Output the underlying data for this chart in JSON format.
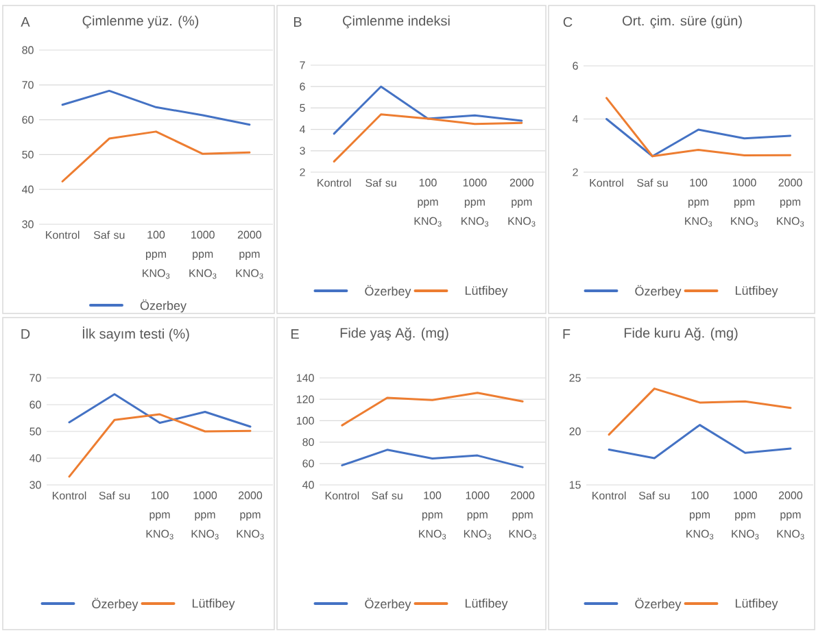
{
  "chart_data": [
    {
      "type": "line",
      "title": "Çimlenme yüz. (%)",
      "annotations": [
        "A"
      ],
      "categories": [
        "Kontrol",
        "Saf su",
        "100 ppm KNO$_{3}$",
        "1000 ppm KNO$_{3}$",
        "2000 ppm KNO$_{3}$"
      ],
      "series": [
        {
          "name": "Özerbey",
          "color": "#4472c4",
          "values": [
            64.3,
            68.3,
            63.6,
            61.3,
            58.6
          ]
        },
        {
          "color": "#ed7d31",
          "values": [
            42.3,
            54.6,
            56.6,
            50.2,
            50.6
          ]
        }
      ],
      "ylim": [
        30,
        80
      ],
      "yticks": [
        30,
        40,
        50,
        60,
        70,
        80
      ],
      "grid": "y",
      "legend": "bottom",
      "line_style": "solid"
    },
    {
      "type": "line",
      "title": "Çimlenme indeksi",
      "annotations": [
        "B"
      ],
      "categories": [
        "Kontrol",
        "Saf su",
        "100 ppm KNO$_{3}$",
        "1000 ppm KNO$_{3}$",
        "2000 ppm KNO$_{3}$"
      ],
      "series": [
        {
          "name": "Özerbey",
          "color": "#4472c4",
          "values": [
            3.8,
            6.0,
            4.5,
            4.65,
            4.4
          ]
        },
        {
          "name": "Lütfibey",
          "color": "#ed7d31",
          "values": [
            2.5,
            4.7,
            4.5,
            4.25,
            4.3
          ]
        }
      ],
      "ylim": [
        2,
        7
      ],
      "yticks": [
        2,
        3,
        4,
        5,
        6,
        7
      ],
      "grid": "y",
      "legend": "bottom",
      "line_style": "solid"
    },
    {
      "type": "line",
      "title": "Ort. çim. süre (gün)",
      "annotations": [
        "C"
      ],
      "categories": [
        "Kontrol",
        "Saf su",
        "100 ppm KNO$_{3}$",
        "1000 ppm KNO$_{3}$",
        "2000 ppm KNO$_{3}$"
      ],
      "series": [
        {
          "name": "Özerbey",
          "color": "#4472c4",
          "values": [
            4.0,
            2.6,
            3.6,
            3.27,
            3.37
          ]
        },
        {
          "name": "Lütfibey",
          "color": "#ed7d31",
          "values": [
            4.79,
            2.6,
            2.84,
            2.63,
            2.64
          ]
        }
      ],
      "ylim": [
        2,
        6
      ],
      "yticks": [
        2,
        4,
        6
      ],
      "grid": "y",
      "legend": "bottom",
      "line_style": "solid"
    },
    {
      "type": "line",
      "title": "İlk sayım testi (%)",
      "annotations": [
        "D"
      ],
      "categories": [
        "Kontrol",
        "Saf su",
        "100 ppm KNO$_{3}$",
        "1000 ppm KNO$_{3}$",
        "2000 ppm KNO$_{3}$"
      ],
      "series": [
        {
          "name": "Özerbey",
          "color": "#4472c4",
          "values": [
            53.4,
            63.9,
            53.2,
            57.3,
            51.8
          ]
        },
        {
          "name": "Lütfibey",
          "color": "#ed7d31",
          "values": [
            33.1,
            54.3,
            56.4,
            50.0,
            50.2
          ]
        }
      ],
      "ylim": [
        30,
        70
      ],
      "yticks": [
        30,
        40,
        50,
        60,
        70
      ],
      "grid": "y",
      "legend": "bottom",
      "line_style": "solid"
    },
    {
      "type": "line",
      "title": "Fide yaş Ağ. (mg)",
      "annotations": [
        "E"
      ],
      "categories": [
        "Kontrol",
        "Saf su",
        "100 ppm KNO$_{3}$",
        "1000 ppm KNO$_{3}$",
        "2000 ppm KNO$_{3}$"
      ],
      "series": [
        {
          "name": "Özerbey",
          "color": "#4472c4",
          "values": [
            58.3,
            72.8,
            64.7,
            67.5,
            56.6
          ]
        },
        {
          "name": "Lütfibey",
          "color": "#ed7d31",
          "values": [
            95.7,
            121.4,
            119.3,
            126.1,
            118.0
          ]
        }
      ],
      "ylim": [
        40,
        140
      ],
      "yticks": [
        40,
        60,
        80,
        100,
        120,
        140
      ],
      "grid": "y",
      "legend": "bottom",
      "line_style": "solid"
    },
    {
      "type": "line",
      "title": "Fide kuru Ağ. (mg)",
      "annotations": [
        "F"
      ],
      "categories": [
        "Kontrol",
        "Saf su",
        "100 ppm KNO$_{3}$",
        "1000 ppm KNO$_{3}$",
        "2000 ppm KNO$_{3}$"
      ],
      "series": [
        {
          "name": "Özerbey",
          "color": "#4472c4",
          "values": [
            18.3,
            17.5,
            20.6,
            18.0,
            18.4
          ]
        },
        {
          "name": "Lütfibey",
          "color": "#ed7d31",
          "values": [
            19.7,
            24.0,
            22.7,
            22.8,
            22.2
          ]
        }
      ],
      "ylim": [
        15,
        25
      ],
      "yticks": [
        15,
        20,
        25
      ],
      "grid": "y",
      "legend": "bottom",
      "line_style": "solid"
    }
  ]
}
